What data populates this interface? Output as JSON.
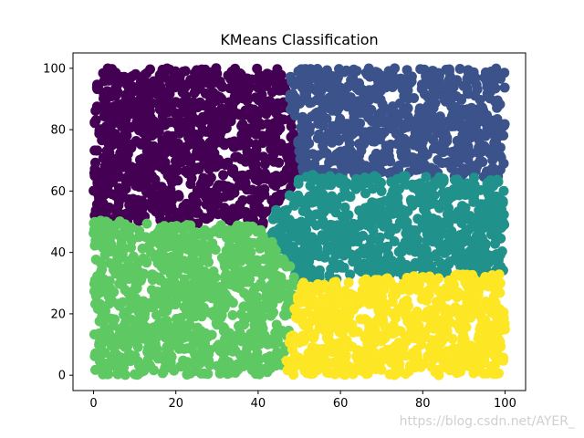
{
  "chart_data": {
    "type": "scatter",
    "title": "KMeans Classification",
    "xlabel": "",
    "ylabel": "",
    "xlim": [
      -5,
      105
    ],
    "ylim": [
      -5,
      105
    ],
    "x_ticks": [
      0,
      20,
      40,
      60,
      80,
      100
    ],
    "y_ticks": [
      0,
      20,
      40,
      60,
      80,
      100
    ],
    "grid": false,
    "legend": false,
    "clusters": [
      {
        "label": 0,
        "color": "#440154",
        "region": "top-left",
        "x_range": [
          0,
          50
        ],
        "y_range": [
          50,
          100
        ],
        "center": [
          24,
          75
        ]
      },
      {
        "label": 1,
        "color": "#3b528b",
        "region": "top-right",
        "x_range": [
          47,
          100
        ],
        "y_range": [
          60,
          100
        ],
        "center": [
          74,
          82
        ]
      },
      {
        "label": 2,
        "color": "#21918c",
        "region": "middle-right",
        "x_range": [
          40,
          100
        ],
        "y_range": [
          28,
          70
        ],
        "center": [
          73,
          48
        ]
      },
      {
        "label": 3,
        "color": "#5ec962",
        "region": "bottom-left",
        "x_range": [
          0,
          50
        ],
        "y_range": [
          0,
          50
        ],
        "center": [
          22,
          24
        ]
      },
      {
        "label": 4,
        "color": "#fde725",
        "region": "bottom-right",
        "x_range": [
          47,
          100
        ],
        "y_range": [
          0,
          38
        ],
        "center": [
          75,
          16
        ]
      }
    ]
  },
  "watermark": "https://blog.csdn.net/AYER_"
}
